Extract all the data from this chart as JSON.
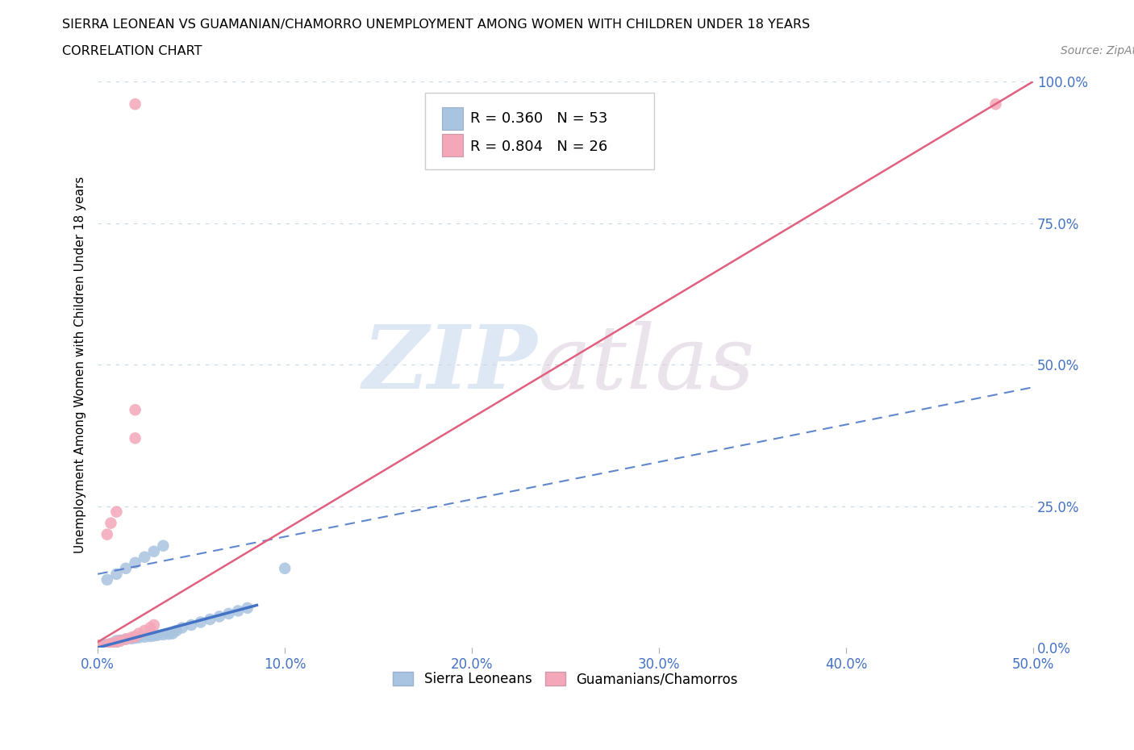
{
  "title_line1": "SIERRA LEONEAN VS GUAMANIAN/CHAMORRO UNEMPLOYMENT AMONG WOMEN WITH CHILDREN UNDER 18 YEARS",
  "title_line2": "CORRELATION CHART",
  "source": "Source: ZipAtlas.com",
  "ylabel": "Unemployment Among Women with Children Under 18 years",
  "xlim": [
    0.0,
    0.5
  ],
  "ylim": [
    0.0,
    1.0
  ],
  "xtick_labels": [
    "0.0%",
    "10.0%",
    "20.0%",
    "30.0%",
    "40.0%",
    "50.0%"
  ],
  "xtick_vals": [
    0.0,
    0.1,
    0.2,
    0.3,
    0.4,
    0.5
  ],
  "ytick_labels": [
    "0.0%",
    "25.0%",
    "50.0%",
    "75.0%",
    "100.0%"
  ],
  "ytick_vals": [
    0.0,
    0.25,
    0.5,
    0.75,
    1.0
  ],
  "color_blue": "#a8c4e0",
  "color_pink": "#f4a7b9",
  "color_blue_text": "#4472c4",
  "color_trend_blue": "#4472c4",
  "color_trend_pink": "#e06080",
  "color_grid": "#c8d8e8",
  "blue_trend_x": [
    0.0,
    0.5
  ],
  "blue_trend_y": [
    0.13,
    0.46
  ],
  "pink_trend_x": [
    0.0,
    0.5
  ],
  "pink_trend_y": [
    0.01,
    1.0
  ],
  "sierra_x": [
    0.0,
    0.0,
    0.0,
    0.0,
    0.0,
    0.0,
    0.0,
    0.0,
    0.0,
    0.0,
    0.002,
    0.003,
    0.004,
    0.005,
    0.006,
    0.007,
    0.008,
    0.009,
    0.01,
    0.01,
    0.012,
    0.015,
    0.018,
    0.02,
    0.022,
    0.025,
    0.028,
    0.03,
    0.032,
    0.035,
    0.038,
    0.04,
    0.042,
    0.045,
    0.05,
    0.055,
    0.06,
    0.065,
    0.07,
    0.075,
    0.08,
    0.005,
    0.01,
    0.015,
    0.02,
    0.025,
    0.03,
    0.035,
    0.002,
    0.004,
    0.006,
    0.008,
    0.1
  ],
  "sierra_y": [
    0.0,
    0.0,
    0.0,
    0.0,
    0.0,
    0.0,
    0.0,
    0.0,
    0.002,
    0.003,
    0.003,
    0.004,
    0.005,
    0.005,
    0.006,
    0.007,
    0.008,
    0.009,
    0.01,
    0.012,
    0.013,
    0.015,
    0.016,
    0.017,
    0.018,
    0.019,
    0.02,
    0.021,
    0.022,
    0.023,
    0.024,
    0.025,
    0.03,
    0.035,
    0.04,
    0.045,
    0.05,
    0.055,
    0.06,
    0.065,
    0.07,
    0.12,
    0.13,
    0.14,
    0.15,
    0.16,
    0.17,
    0.18,
    0.0,
    0.001,
    0.002,
    0.003,
    0.14
  ],
  "guam_x": [
    0.0,
    0.0,
    0.0,
    0.0,
    0.0,
    0.0,
    0.0,
    0.0,
    0.005,
    0.007,
    0.01,
    0.012,
    0.015,
    0.018,
    0.02,
    0.022,
    0.025,
    0.028,
    0.03,
    0.005,
    0.007,
    0.01,
    0.02,
    0.02,
    0.48,
    0.02
  ],
  "guam_y": [
    0.0,
    0.0,
    0.0,
    0.0,
    0.0,
    0.002,
    0.003,
    0.004,
    0.005,
    0.007,
    0.01,
    0.012,
    0.015,
    0.018,
    0.02,
    0.025,
    0.03,
    0.035,
    0.04,
    0.2,
    0.22,
    0.24,
    0.37,
    0.42,
    0.96,
    0.96
  ]
}
